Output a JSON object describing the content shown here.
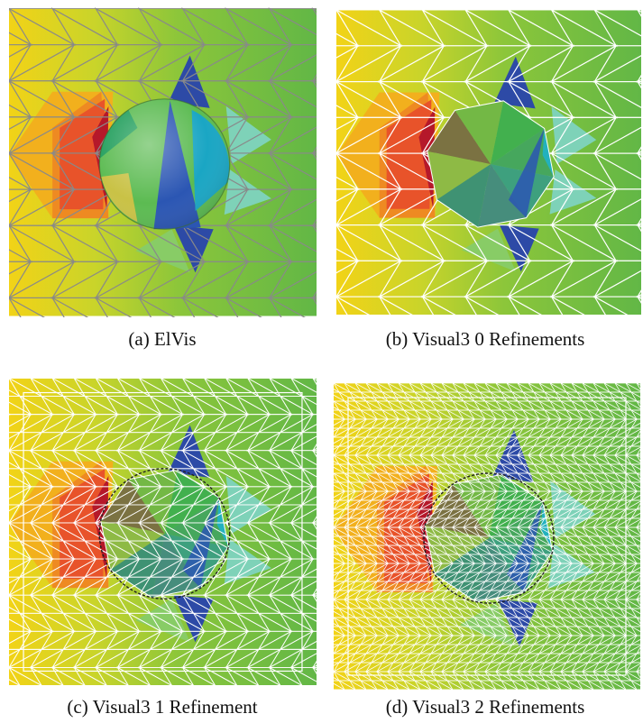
{
  "figure": {
    "panels": [
      {
        "id": "a",
        "caption": "(a)  ElVis",
        "refinements": null,
        "edge_color": "#8a8a8a"
      },
      {
        "id": "b",
        "caption": "(b)  Visual3 0 Refinements",
        "refinements": 0,
        "edge_color": "#ffffff"
      },
      {
        "id": "c",
        "caption": "(c)  Visual3 1 Refinement",
        "refinements": 1,
        "edge_color": "#ffffff"
      },
      {
        "id": "d",
        "caption": "(d)  Visual3 2 Refinements",
        "refinements": 2,
        "edge_color": "#ffffff"
      }
    ]
  }
}
